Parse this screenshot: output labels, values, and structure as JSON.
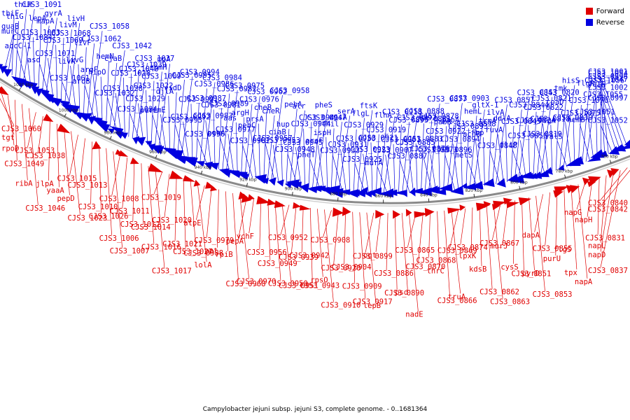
{
  "colors": {
    "forward": "#e00000",
    "reverse": "#0000e0",
    "backbone": "#8a8a8a"
  },
  "legend": {
    "forward": "Forward",
    "reverse": "Reverse"
  },
  "caption": "Campylobacter jejuni subsp. jejuni S3, complete genome. - 0..1681364",
  "ticks": [
    "1020 kbp",
    "1000 kbp",
    "980 kbp",
    "960 kbp",
    "940 kbp",
    "920 kbp",
    "900 kbp",
    "880 kbp",
    "860 kbp",
    "840 kbp",
    "820 kbp",
    "800 kbp",
    "780 kbp",
    "760 kbp"
  ],
  "reverse_labels": [
    "guaB",
    "murC",
    "thiF",
    "thiG",
    "thiH",
    "CJS3_1091",
    "accC-1",
    "CJS3_1084",
    "CJS3_1083",
    "lepA",
    "mapA",
    "gyrA",
    "asd",
    "CJS3_1071",
    "CJS3_1069",
    "CJS3_1068",
    "livM",
    "livH",
    "CJS3_1061",
    "livK",
    "livG",
    "livF",
    "CJS3_1062",
    "CJS3_1058",
    "aroB",
    "argF",
    "hipO",
    "hemN",
    "cjaB",
    "CJS3_1042",
    "CJS3_1032",
    "CJS3_1028",
    "CJS3_1018",
    "CJS3_1040",
    "CJS3_1039",
    "CJS3_1037",
    "CJS3_1034",
    "CJS3_1029",
    "CJS3_1022",
    "CJS3_1009",
    "rpmH",
    "mpA",
    "purL",
    "trmE",
    "djlA",
    "vidD",
    "CJS3_0995",
    "CJS3_0994",
    "CJS3_0993",
    "CJS3_0992",
    "CJS3_0991",
    "CJS3_0987",
    "CJS3_0986",
    "CJS3_0984",
    "CJS3_0990",
    "CJS3_0983",
    "CJS3_0981",
    "CJS3_0989",
    "CJS3_0982",
    "CJS3_0975",
    "pckA",
    "CJS3_0977",
    "aas",
    "argH",
    "CJS3_0976",
    "CJS3_0962",
    "CJS3_0961",
    "pebC",
    "prsA",
    "cheB",
    "cheR",
    "CJS3_0958",
    "CJS3_0957",
    "CJS3_0953",
    "ciaB",
    "hup",
    "pebA",
    "alr",
    "CJS3_0948",
    "CJS3_0945",
    "CJS3_0944",
    "CJS3_0941",
    "CJS3_0947",
    "pheS",
    "pheT",
    "aroF",
    "ispH",
    "thil",
    "rpsA",
    "serA",
    "CJS3_0933",
    "CJS3_0931",
    "CJS3_0930",
    "CJS3_0929",
    "flgL",
    "ftsK",
    "CJS3_0925",
    "CJS3_0923",
    "CJS3_0921",
    "CJS3_0919",
    "flhA",
    "CJS3_0918",
    "murA",
    "CJS3_0907",
    "CJS3_0901",
    "CJS3_0895",
    "CJS3_0892",
    "CJS3_0888",
    "CJS3_0887",
    "CJS3_0885",
    "CJS3_0883",
    "CJS3_0881",
    "CJS3_0878",
    "CJS3_0877",
    "CJS3_0876",
    "CJS3_0873",
    "CJS3_0922",
    "pabB",
    "pabA",
    "CJS3_0903",
    "CJS3_0896",
    "CJS3_0894",
    "CJS3_0893",
    "CJS3_0898",
    "hemL",
    "gltX-1",
    "metS",
    "acnB",
    "fbp",
    "trmA",
    "ilvA",
    "CJS3_0857",
    "CJS3_0848",
    "ruvA",
    "ddlA",
    "CJS3_0845",
    "CJS3_0844",
    "CJS3_0843",
    "fliP",
    "CJS3_0856",
    "CJS3_0824",
    "CJS3_0822",
    "CJS3_0821",
    "CJS3_0820",
    "CJS3_0819",
    "CJS3_0818",
    "flgA",
    "coaD",
    "tmk",
    "hisS",
    "valS",
    "CJS3_0839",
    "CJS3_1075",
    "CJS3_1070",
    "flgR",
    "CJS3_1056",
    "hemB",
    "CJS3_1051",
    "CJS3_1055",
    "yeiH",
    "CJS3_1047",
    "CJS3_1054",
    "CJS3_1052",
    "CJS3_0997",
    "CJS3_1002",
    "CJS3_0996",
    "CJS3_1001"
  ],
  "forward_labels": [
    "CJS3_1060",
    "tgt",
    "rpoD",
    "CJS3_1049",
    "ribA",
    "CJS3_1046",
    "CJS3_1053",
    "CJS3_1038",
    "jlpA",
    "yaaA",
    "pepD",
    "CJS3_1023",
    "CJS3_1015",
    "CJS3_1013",
    "CJS3_1010",
    "CJS3_1026",
    "CJS3_1006",
    "CJS3_1007",
    "CJS3_1008",
    "CJS3_1011",
    "CJS3_1012",
    "CJS3_1014",
    "CJS3_1016",
    "CJS3_1017",
    "CJS3_1019",
    "CJS3_1020",
    "CJS3_1021",
    "CJS3_1027",
    "CJS3_0988",
    "lolA",
    "atpE",
    "CJS3_0979",
    "apt",
    "rpiB",
    "CJS3_0968",
    "CJS3_0970",
    "pepA",
    "ychF",
    "CJS3_0956",
    "CJS3_0949",
    "CJS3_0950",
    "CJS3_0951",
    "CJS3_0952",
    "CJS3_0939",
    "CJS3_0942",
    "CJS3_0943",
    "rpsO",
    "CJS3_0910",
    "CJS3_0908",
    "CJS3_0920",
    "CJS3_0904",
    "CJS3_0909",
    "CJS3_0917",
    "lepB",
    "CJS3_0899",
    "ogt",
    "CJS3_0886",
    "CJS3_0890",
    "psd",
    "nadE",
    "CJS3_0865",
    "CJS3_0870",
    "CJS3_0868",
    "thrC",
    "CJS3_0866",
    "truA",
    "CJS3_0869",
    "CJS3_0874",
    "lpxK",
    "kdsB",
    "CJS3_0862",
    "CJS3_0863",
    "CJS3_0867",
    "murJ",
    "cysS",
    "CJS3_0851",
    "pyrD",
    "CJS3_0853",
    "dapA",
    "CJS3_0855",
    "purU",
    "flgS",
    "tpx",
    "napA",
    "napG",
    "napH",
    "CJS3_0831",
    "napL",
    "napD",
    "CJS3_0837",
    "CJS3_0840",
    "CJS3_0842"
  ]
}
